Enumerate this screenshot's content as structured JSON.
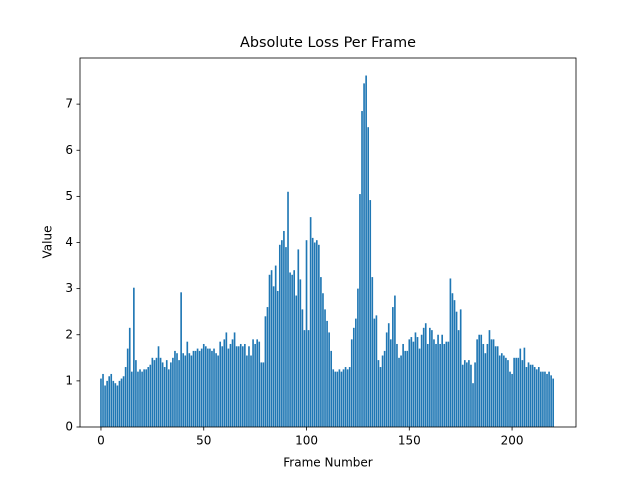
{
  "chart_data": {
    "type": "bar",
    "title": "Absolute Loss Per Frame",
    "xlabel": "Frame Number",
    "ylabel": "Value",
    "color": "#1f77b4",
    "x": [
      0,
      1,
      2,
      3,
      4,
      5,
      6,
      7,
      8,
      9,
      10,
      11,
      12,
      13,
      14,
      15,
      16,
      17,
      18,
      19,
      20,
      21,
      22,
      23,
      24,
      25,
      26,
      27,
      28,
      29,
      30,
      31,
      32,
      33,
      34,
      35,
      36,
      37,
      38,
      39,
      40,
      41,
      42,
      43,
      44,
      45,
      46,
      47,
      48,
      49,
      50,
      51,
      52,
      53,
      54,
      55,
      56,
      57,
      58,
      59,
      60,
      61,
      62,
      63,
      64,
      65,
      66,
      67,
      68,
      69,
      70,
      71,
      72,
      73,
      74,
      75,
      76,
      77,
      78,
      79,
      80,
      81,
      82,
      83,
      84,
      85,
      86,
      87,
      88,
      89,
      90,
      91,
      92,
      93,
      94,
      95,
      96,
      97,
      98,
      99,
      100,
      101,
      102,
      103,
      104,
      105,
      106,
      107,
      108,
      109,
      110,
      111,
      112,
      113,
      114,
      115,
      116,
      117,
      118,
      119,
      120,
      121,
      122,
      123,
      124,
      125,
      126,
      127,
      128,
      129,
      130,
      131,
      132,
      133,
      134,
      135,
      136,
      137,
      138,
      139,
      140,
      141,
      142,
      143,
      144,
      145,
      146,
      147,
      148,
      149,
      150,
      151,
      152,
      153,
      154,
      155,
      156,
      157,
      158,
      159,
      160,
      161,
      162,
      163,
      164,
      165,
      166,
      167,
      168,
      169,
      170,
      171,
      172,
      173,
      174,
      175,
      176,
      177,
      178,
      179,
      180,
      181,
      182,
      183,
      184,
      185,
      186,
      187,
      188,
      189,
      190,
      191,
      192,
      193,
      194,
      195,
      196,
      197,
      198,
      199,
      200,
      201,
      202,
      203,
      204,
      205,
      206,
      207,
      208,
      209,
      210,
      211,
      212,
      213,
      214,
      215,
      216,
      217,
      218,
      219,
      220
    ],
    "values": [
      1.05,
      1.15,
      0.9,
      1.0,
      1.1,
      1.15,
      1.0,
      0.95,
      0.9,
      1.0,
      1.05,
      1.1,
      1.3,
      1.7,
      2.15,
      1.2,
      3.02,
      1.45,
      1.2,
      1.25,
      1.2,
      1.25,
      1.25,
      1.3,
      1.35,
      1.5,
      1.45,
      1.5,
      1.75,
      1.5,
      1.4,
      1.3,
      1.45,
      1.25,
      1.4,
      1.5,
      1.65,
      1.6,
      1.45,
      2.92,
      1.6,
      1.55,
      1.85,
      1.6,
      1.55,
      1.65,
      1.65,
      1.7,
      1.65,
      1.7,
      1.8,
      1.75,
      1.7,
      1.7,
      1.65,
      1.7,
      1.6,
      1.55,
      1.85,
      1.75,
      1.9,
      2.05,
      1.7,
      1.8,
      1.9,
      2.05,
      1.75,
      1.75,
      1.8,
      1.75,
      1.8,
      1.55,
      1.75,
      1.55,
      1.9,
      1.8,
      1.9,
      1.85,
      1.4,
      1.4,
      2.4,
      2.6,
      3.3,
      3.4,
      3.05,
      3.5,
      2.95,
      3.95,
      4.05,
      4.25,
      3.9,
      5.1,
      3.35,
      3.3,
      3.4,
      2.85,
      3.85,
      3.2,
      2.55,
      2.1,
      4.05,
      2.1,
      4.55,
      4.1,
      4.0,
      4.05,
      3.95,
      3.25,
      2.9,
      2.55,
      2.3,
      2.05,
      1.65,
      1.25,
      1.2,
      1.2,
      1.25,
      1.2,
      1.25,
      1.3,
      1.25,
      1.3,
      1.9,
      2.15,
      2.35,
      3.0,
      5.05,
      6.85,
      7.45,
      7.62,
      6.5,
      4.92,
      3.25,
      2.35,
      2.42,
      1.45,
      1.3,
      1.55,
      1.65,
      2.05,
      2.25,
      1.9,
      2.6,
      2.85,
      1.8,
      1.5,
      1.55,
      1.8,
      1.65,
      1.65,
      1.9,
      1.95,
      1.85,
      2.05,
      1.95,
      1.7,
      2.0,
      2.15,
      2.25,
      1.8,
      2.15,
      2.1,
      1.9,
      1.8,
      2.0,
      1.8,
      2.0,
      1.8,
      1.85,
      1.85,
      3.22,
      2.9,
      2.75,
      2.5,
      2.1,
      2.55,
      1.35,
      1.45,
      1.4,
      1.45,
      1.35,
      0.95,
      1.4,
      1.9,
      2.0,
      2.0,
      1.8,
      1.6,
      1.8,
      2.1,
      1.9,
      1.9,
      1.75,
      1.75,
      1.55,
      1.6,
      1.55,
      1.5,
      1.45,
      1.2,
      1.15,
      1.5,
      1.5,
      1.5,
      1.7,
      1.45,
      1.72,
      1.3,
      1.4,
      1.35,
      1.35,
      1.3,
      1.25,
      1.3,
      1.2,
      1.2,
      1.2,
      1.15,
      1.2,
      1.12,
      1.05
    ],
    "xlim": [
      -10.2,
      231.1
    ],
    "xticks": [
      0,
      50,
      100,
      150,
      200
    ],
    "ylim": [
      0,
      8.0
    ],
    "yticks": [
      0,
      1,
      2,
      3,
      4,
      5,
      6,
      7
    ]
  }
}
